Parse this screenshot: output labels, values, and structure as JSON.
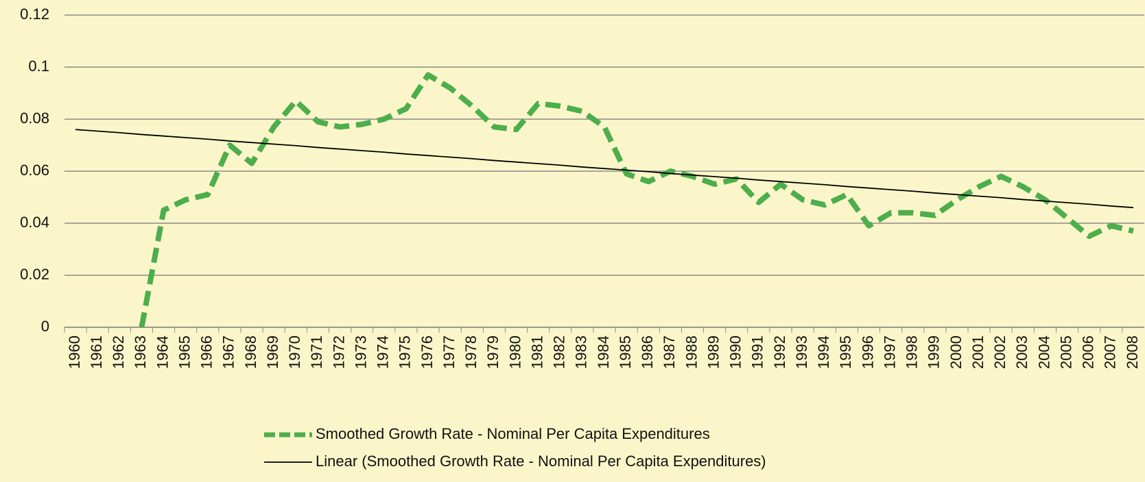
{
  "chart_data": {
    "type": "line",
    "categories": [
      "1960",
      "1961",
      "1962",
      "1963",
      "1964",
      "1965",
      "1966",
      "1967",
      "1968",
      "1969",
      "1970",
      "1971",
      "1972",
      "1973",
      "1974",
      "1975",
      "1976",
      "1977",
      "1978",
      "1979",
      "1980",
      "1981",
      "1982",
      "1983",
      "1984",
      "1985",
      "1986",
      "1987",
      "1988",
      "1989",
      "1990",
      "1991",
      "1992",
      "1993",
      "1994",
      "1995",
      "1996",
      "1997",
      "1998",
      "1999",
      "2000",
      "2001",
      "2002",
      "2003",
      "2004",
      "2005",
      "2006",
      "2007",
      "2008"
    ],
    "series": [
      {
        "name": "Smoothed Growth Rate - Nominal Per Capita Expenditures",
        "color": "#4cae4c",
        "dashed": true,
        "values": [
          null,
          null,
          null,
          0,
          0.045,
          0.049,
          0.051,
          0.07,
          0.063,
          0.077,
          0.087,
          0.079,
          0.077,
          0.078,
          0.08,
          0.084,
          0.097,
          0.092,
          0.085,
          0.077,
          0.076,
          0.086,
          0.085,
          0.083,
          0.077,
          0.059,
          0.056,
          0.06,
          0.058,
          0.055,
          0.057,
          0.048,
          0.055,
          0.049,
          0.047,
          0.051,
          0.039,
          0.044,
          0.044,
          0.043,
          0.049,
          0.054,
          0.058,
          0.054,
          0.049,
          0.042,
          0.035,
          0.039,
          0.037
        ]
      },
      {
        "name": "Linear (Smoothed Growth Rate - Nominal Per Capita Expenditures)",
        "color": "#000000",
        "dashed": false,
        "values": [
          0.076,
          0.0754,
          0.0748,
          0.0741,
          0.0735,
          0.0729,
          0.0723,
          0.0716,
          0.071,
          0.0704,
          0.0698,
          0.0691,
          0.0685,
          0.0679,
          0.0673,
          0.0666,
          0.066,
          0.0654,
          0.0648,
          0.0641,
          0.0635,
          0.0629,
          0.0623,
          0.0616,
          0.061,
          0.0604,
          0.0598,
          0.0591,
          0.0585,
          0.0579,
          0.0573,
          0.0566,
          0.056,
          0.0554,
          0.0548,
          0.0541,
          0.0535,
          0.0529,
          0.0523,
          0.0516,
          0.051,
          0.0504,
          0.0498,
          0.0491,
          0.0485,
          0.0479,
          0.0473,
          0.0466,
          0.046
        ]
      }
    ],
    "ylim": [
      0,
      0.12
    ],
    "yticks": [
      0,
      0.02,
      0.04,
      0.06,
      0.08,
      0.1,
      0.12
    ],
    "grid": true,
    "legend": "bottom"
  }
}
